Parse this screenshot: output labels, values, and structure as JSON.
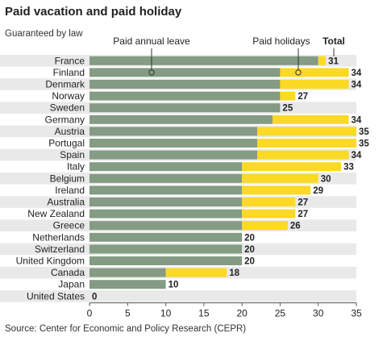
{
  "header": {
    "title": "Paid vacation and paid holiday",
    "subtitle": "Guaranteed by law"
  },
  "footer": {
    "source": "Source: Center for Economic and Policy Research (CEPR)"
  },
  "chart_data": {
    "type": "bar",
    "orientation": "horizontal",
    "stacked": true,
    "categories": [
      "France",
      "Finland",
      "Denmark",
      "Norway",
      "Sweden",
      "Germany",
      "Austria",
      "Portugal",
      "Spain",
      "Italy",
      "Belgium",
      "Ireland",
      "Australia",
      "New Zealand",
      "Greece",
      "Netherlands",
      "Switzerland",
      "United Kingdom",
      "Canada",
      "Japan",
      "United States"
    ],
    "series": [
      {
        "name": "Paid annual leave",
        "color": "#849b84",
        "values": [
          30,
          25,
          25,
          25,
          25,
          24,
          22,
          22,
          22,
          20,
          20,
          20,
          20,
          20,
          20,
          20,
          20,
          20,
          10,
          10,
          0
        ]
      },
      {
        "name": "Paid holidays",
        "color": "#fbd925",
        "values": [
          1,
          9,
          9,
          2,
          0,
          10,
          13,
          13,
          12,
          13,
          10,
          9,
          7,
          7,
          6,
          0,
          0,
          0,
          8,
          0,
          0
        ]
      }
    ],
    "totals_label": "Total",
    "totals": [
      31,
      34,
      34,
      27,
      25,
      34,
      35,
      35,
      34,
      33,
      30,
      29,
      27,
      27,
      26,
      20,
      20,
      20,
      18,
      10,
      0
    ],
    "xlim": [
      0,
      35
    ],
    "xticks": [
      0,
      5,
      10,
      15,
      20,
      25,
      30,
      35
    ],
    "row_stripes": true,
    "colors": {
      "stripe": "#e9e9e9",
      "axis": "#555555",
      "annual": "#849b84",
      "holidays": "#fbd925"
    }
  }
}
